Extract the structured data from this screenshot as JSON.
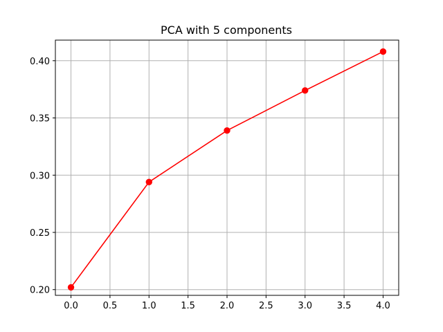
{
  "chart_data": {
    "type": "line",
    "title": "PCA with 5 components",
    "xlabel": "",
    "ylabel": "",
    "x": [
      0,
      1,
      2,
      3,
      4
    ],
    "series": [
      {
        "values": [
          0.202,
          0.294,
          0.339,
          0.374,
          0.408
        ],
        "color": "#ff0000",
        "marker": "circle"
      }
    ],
    "xlim": [
      -0.2,
      4.2
    ],
    "ylim": [
      0.195,
      0.418
    ],
    "xticks": [
      0.0,
      0.5,
      1.0,
      1.5,
      2.0,
      2.5,
      3.0,
      3.5,
      4.0
    ],
    "xtick_labels": [
      "0.0",
      "0.5",
      "1.0",
      "1.5",
      "2.0",
      "2.5",
      "3.0",
      "3.5",
      "4.0"
    ],
    "yticks": [
      0.2,
      0.25,
      0.3,
      0.35,
      0.4
    ],
    "ytick_labels": [
      "0.20",
      "0.25",
      "0.30",
      "0.35",
      "0.40"
    ],
    "grid": true,
    "grid_color": "#b0b0b0",
    "legend": "none"
  }
}
